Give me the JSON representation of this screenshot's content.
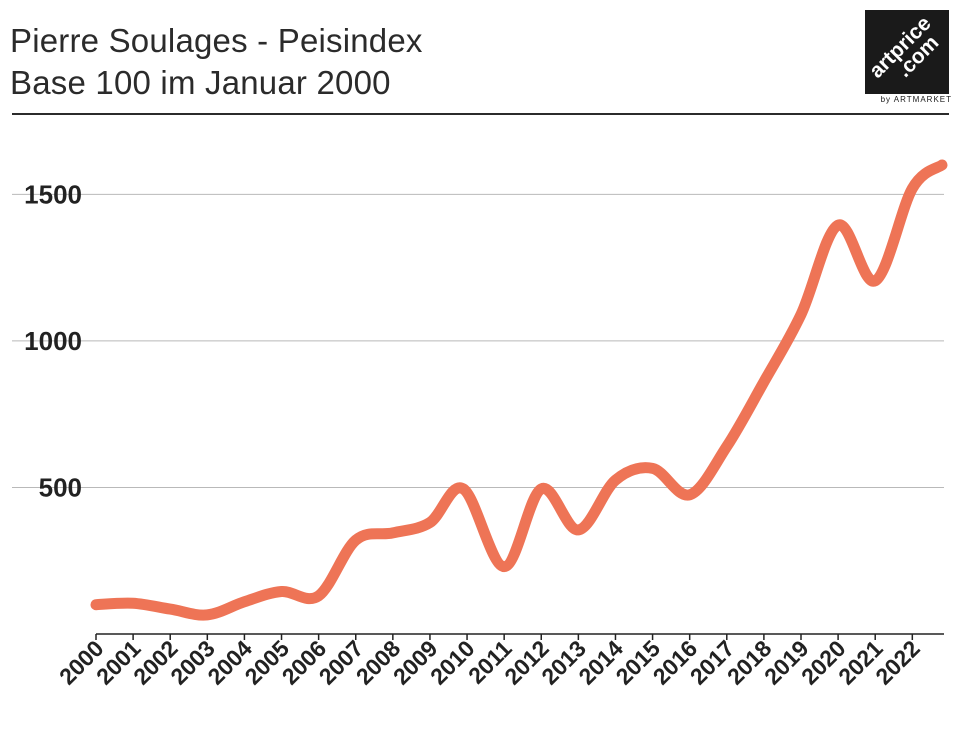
{
  "header": {
    "title_line1": "Pierre Soulages - Peisindex",
    "title_line2": "Base 100 im Januar 2000"
  },
  "logo": {
    "line1": "artprice",
    "line2": ".com",
    "sub": "by ARTMARKET",
    "icon": "artprice-logo"
  },
  "chart_data": {
    "type": "line",
    "title": "Pierre Soulages - Peisindex",
    "subtitle": "Base 100 im Januar 2000",
    "xlabel": "",
    "ylabel": "",
    "x": [
      2000,
      2001,
      2002,
      2003,
      2004,
      2005,
      2006,
      2007,
      2008,
      2009,
      2010,
      2011,
      2012,
      2013,
      2014,
      2015,
      2016,
      2017,
      2018,
      2019,
      2020,
      2021,
      2022
    ],
    "x_tick_labels": [
      "2000",
      "2001",
      "2002",
      "2003",
      "2004",
      "2005",
      "2006",
      "2007",
      "2008",
      "2009",
      "2010",
      "2011",
      "2012",
      "2013",
      "2014",
      "2015",
      "2016",
      "2017",
      "2018",
      "2019",
      "2020",
      "2021",
      "2022"
    ],
    "series": [
      {
        "points": [
          [
            2000,
            100
          ],
          [
            2001,
            105
          ],
          [
            2002,
            85
          ],
          [
            2003,
            65
          ],
          [
            2004,
            110
          ],
          [
            2005,
            145
          ],
          [
            2006,
            130
          ],
          [
            2007,
            320
          ],
          [
            2008,
            345
          ],
          [
            2009,
            380
          ],
          [
            2009.9,
            495
          ],
          [
            2011,
            230
          ],
          [
            2012,
            495
          ],
          [
            2013,
            355
          ],
          [
            2014,
            525
          ],
          [
            2015,
            565
          ],
          [
            2016,
            475
          ],
          [
            2017,
            640
          ],
          [
            2018,
            860
          ],
          [
            2019,
            1090
          ],
          [
            2020,
            1395
          ],
          [
            2021,
            1205
          ],
          [
            2022,
            1520
          ],
          [
            2022.8,
            1600
          ]
        ]
      }
    ],
    "xlim": [
      2000,
      2022.8
    ],
    "ylim": [
      0,
      1600
    ],
    "y_ticks": [
      500,
      1000,
      1500
    ],
    "y_tick_labels": [
      "500",
      "1000",
      "1500"
    ],
    "grid": "horizontal",
    "legend": "none",
    "colors": {
      "line": "#ee7456",
      "grid": "#b9b9b9",
      "axis": "#222222",
      "text": "#222222"
    }
  }
}
